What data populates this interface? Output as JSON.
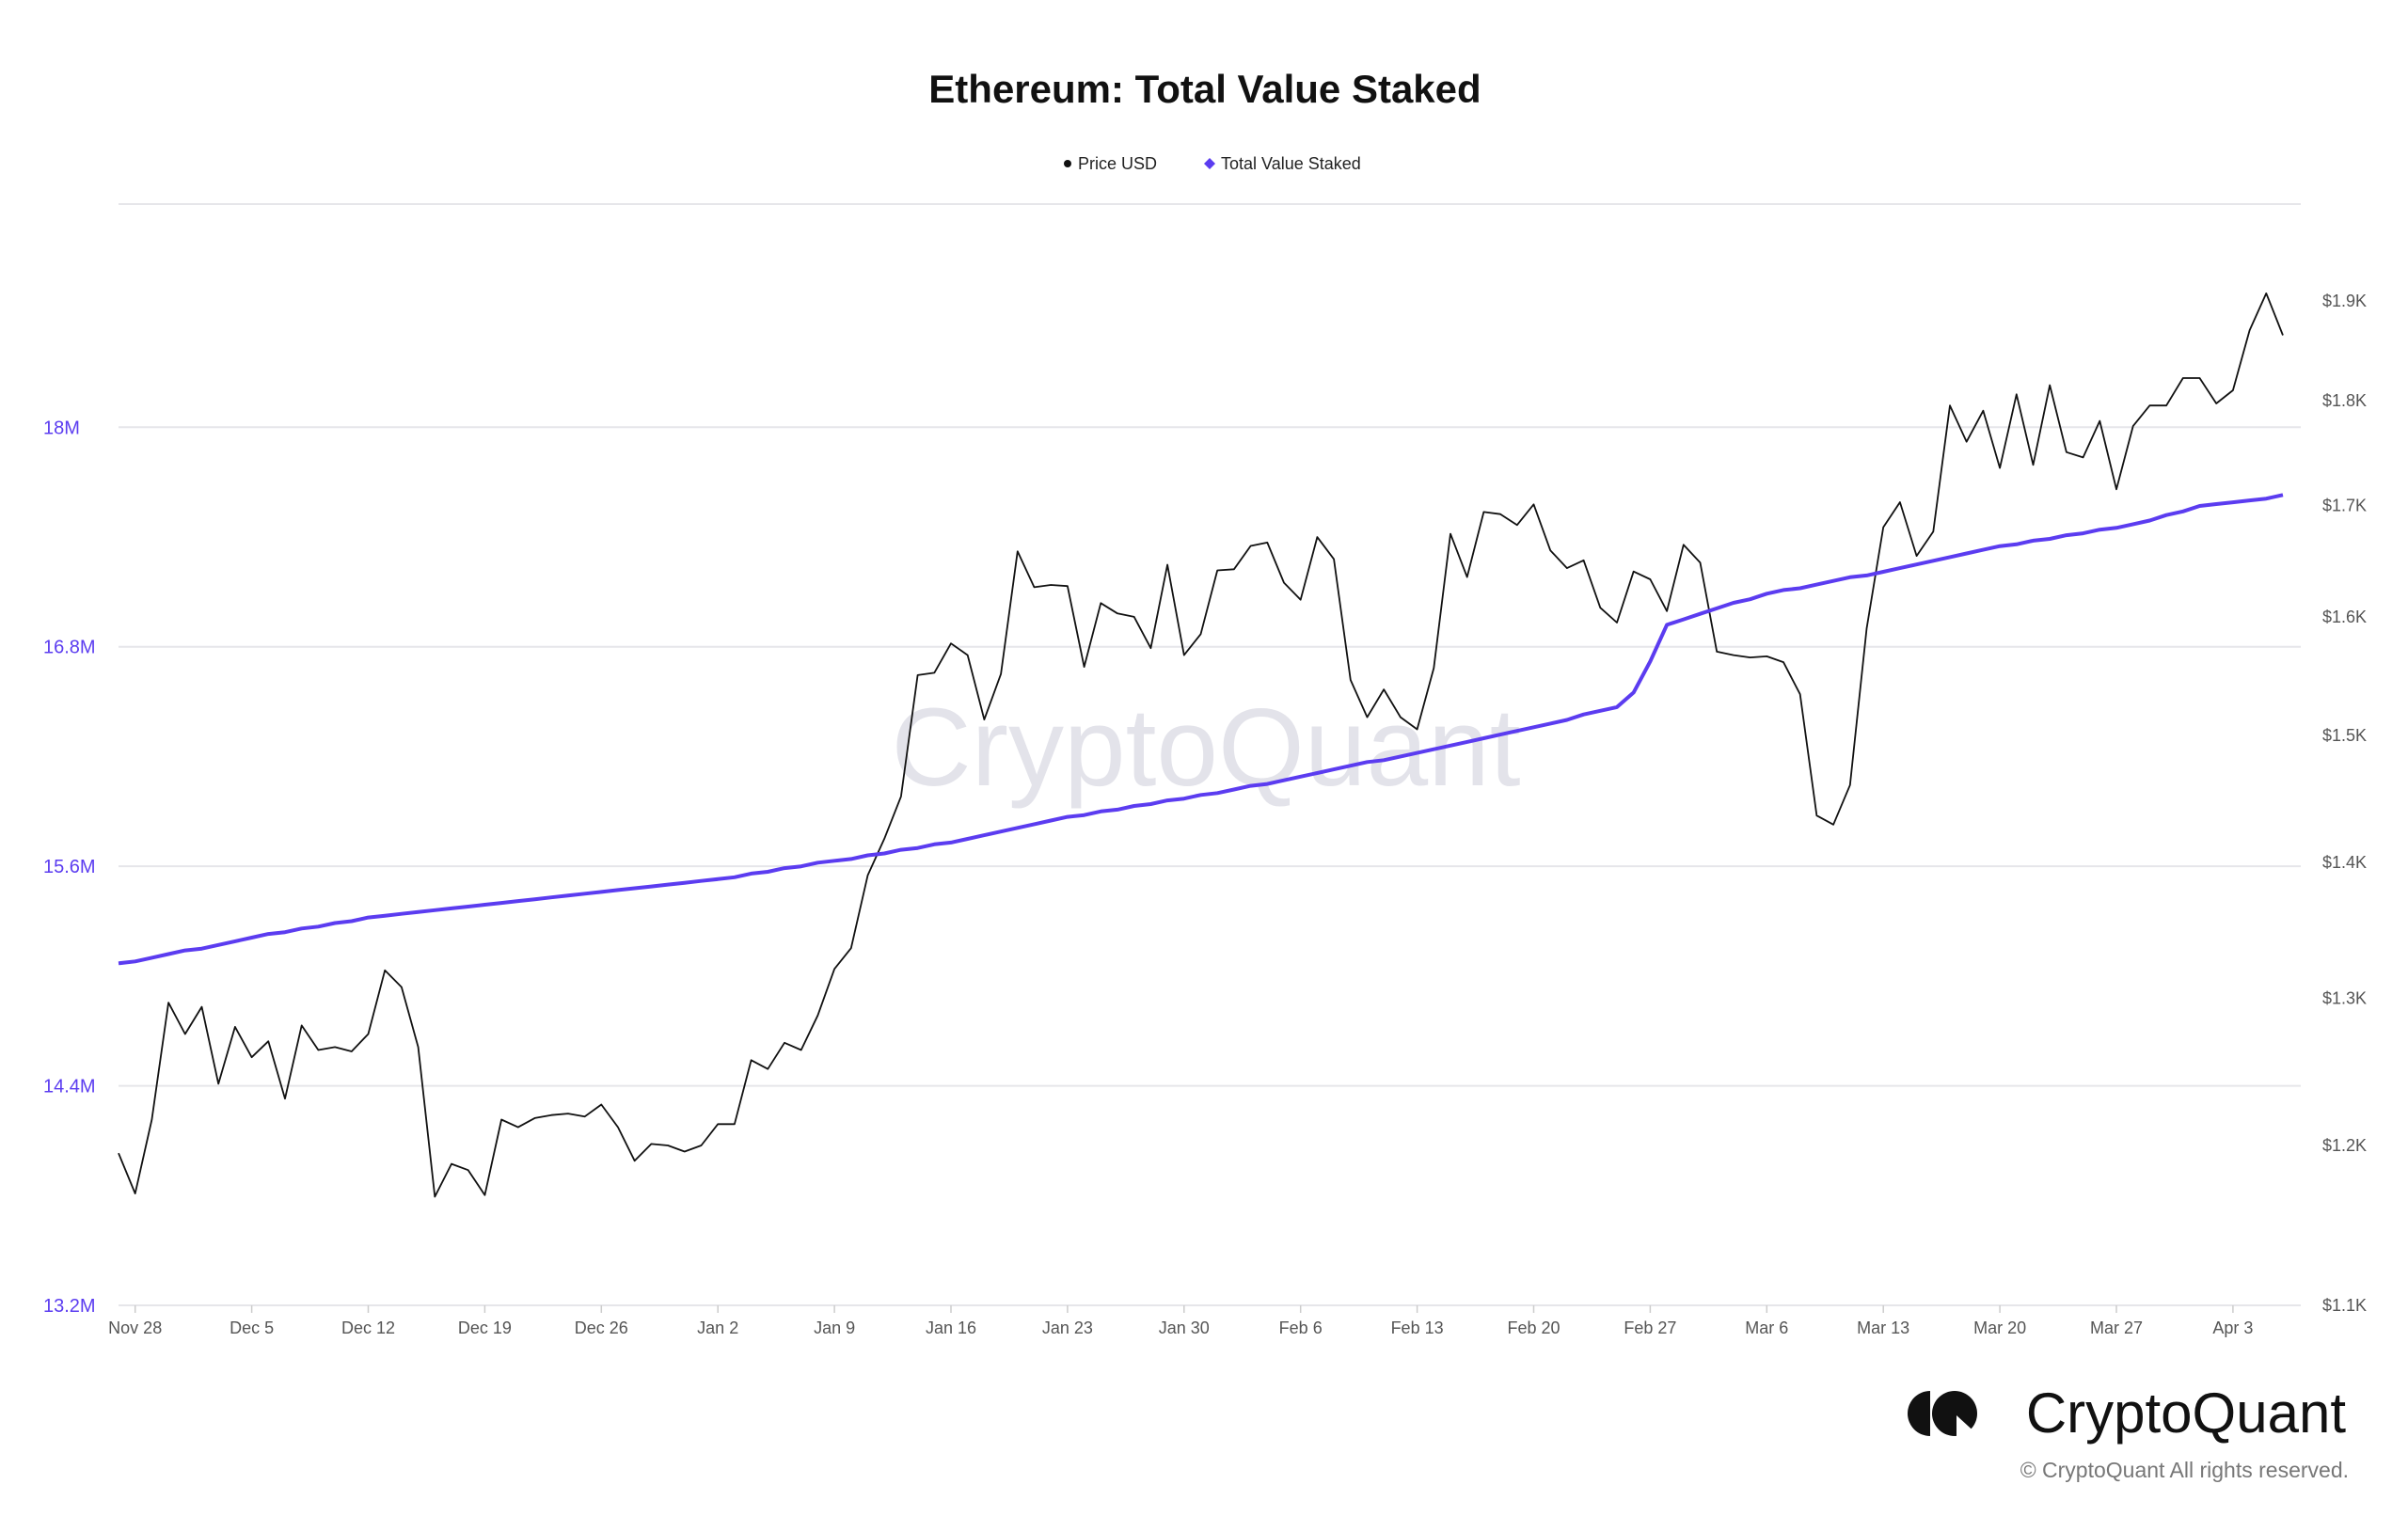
{
  "chart_data": {
    "type": "line",
    "title": "Ethereum: Total Value Staked",
    "legend": {
      "placement": "top-center",
      "items": [
        "Price USD",
        "Total Value Staked"
      ]
    },
    "x_range": [
      "2022-11-27",
      "2023-04-06"
    ],
    "x_frequency": "daily",
    "x_tick_labels": [
      "Nov 28",
      "Dec 5",
      "Dec 12",
      "Dec 19",
      "Dec 26",
      "Jan 2",
      "Jan 9",
      "Jan 16",
      "Jan 23",
      "Jan 30",
      "Feb 6",
      "Feb 13",
      "Feb 20",
      "Feb 27",
      "Mar 6",
      "Mar 13",
      "Mar 20",
      "Mar 27",
      "Apr 3"
    ],
    "left_axis": {
      "ticks": [
        13.2,
        14.4,
        15.6,
        16.8,
        18
      ],
      "tick_labels": [
        "13.2M",
        "14.4M",
        "15.6M",
        "16.8M",
        "18M"
      ],
      "ylim": [
        13.2,
        19.22
      ],
      "unit": "M",
      "color": "#5b3cf0"
    },
    "right_axis": {
      "scale": "log",
      "ticks": [
        1100,
        1200,
        1300,
        1400,
        1500,
        1600,
        1700,
        1800,
        1900
      ],
      "tick_labels": [
        "$1.1K",
        "$1.2K",
        "$1.3K",
        "$1.4K",
        "$1.5K",
        "$1.6K",
        "$1.7K",
        "$1.8K",
        "$1.9K"
      ],
      "ylim": [
        1100,
        2003
      ]
    },
    "grid": true,
    "series": [
      {
        "name": "Price USD",
        "axis": "right",
        "color": "#111111",
        "values": [
          1195,
          1169,
          1217,
          1297,
          1275,
          1294,
          1241,
          1280,
          1259,
          1270,
          1231,
          1281,
          1264,
          1266,
          1263,
          1275,
          1320,
          1308,
          1266,
          1167,
          1188,
          1184,
          1168,
          1217,
          1212,
          1218,
          1220,
          1221,
          1219,
          1227,
          1212,
          1190,
          1201,
          1200,
          1196,
          1200,
          1214,
          1214,
          1257,
          1251,
          1269,
          1264,
          1288,
          1321,
          1336,
          1390,
          1418,
          1451,
          1550,
          1552,
          1577,
          1567,
          1513,
          1551,
          1658,
          1626,
          1628,
          1627,
          1557,
          1612,
          1603,
          1600,
          1573,
          1646,
          1567,
          1585,
          1641,
          1642,
          1663,
          1666,
          1630,
          1615,
          1671,
          1651,
          1546,
          1515,
          1538,
          1515,
          1505,
          1556,
          1674,
          1635,
          1694,
          1692,
          1682,
          1701,
          1659,
          1643,
          1650,
          1608,
          1595,
          1640,
          1633,
          1605,
          1664,
          1648,
          1570,
          1567,
          1565,
          1566,
          1561,
          1534,
          1436,
          1429,
          1460,
          1590,
          1680,
          1703,
          1654,
          1676,
          1795,
          1760,
          1790,
          1735,
          1806,
          1738,
          1815,
          1750,
          1745,
          1780,
          1715,
          1775,
          1795,
          1795,
          1822,
          1822,
          1797,
          1810,
          1870,
          1908,
          1865
        ]
      },
      {
        "name": "Total Value Staked",
        "axis": "left",
        "color": "#5b3cf0",
        "values": [
          15.07,
          15.08,
          15.1,
          15.12,
          15.14,
          15.15,
          15.17,
          15.19,
          15.21,
          15.23,
          15.24,
          15.26,
          15.27,
          15.29,
          15.3,
          15.32,
          15.33,
          15.34,
          15.35,
          15.36,
          15.37,
          15.38,
          15.39,
          15.4,
          15.41,
          15.42,
          15.43,
          15.44,
          15.45,
          15.46,
          15.47,
          15.48,
          15.49,
          15.5,
          15.51,
          15.52,
          15.53,
          15.54,
          15.56,
          15.57,
          15.59,
          15.6,
          15.62,
          15.63,
          15.64,
          15.66,
          15.67,
          15.69,
          15.7,
          15.72,
          15.73,
          15.75,
          15.77,
          15.79,
          15.81,
          15.83,
          15.85,
          15.87,
          15.88,
          15.9,
          15.91,
          15.93,
          15.94,
          15.96,
          15.97,
          15.99,
          16.0,
          16.02,
          16.04,
          16.05,
          16.07,
          16.09,
          16.11,
          16.13,
          16.15,
          16.17,
          16.18,
          16.2,
          16.22,
          16.24,
          16.26,
          16.28,
          16.3,
          16.32,
          16.34,
          16.36,
          16.38,
          16.4,
          16.43,
          16.45,
          16.47,
          16.55,
          16.72,
          16.92,
          16.95,
          16.98,
          17.01,
          17.04,
          17.06,
          17.09,
          17.11,
          17.12,
          17.14,
          17.16,
          17.18,
          17.19,
          17.21,
          17.23,
          17.25,
          17.27,
          17.29,
          17.31,
          17.33,
          17.35,
          17.36,
          17.38,
          17.39,
          17.41,
          17.42,
          17.44,
          17.45,
          17.47,
          17.49,
          17.52,
          17.54,
          17.57,
          17.58,
          17.59,
          17.6,
          17.61,
          17.63
        ]
      }
    ]
  },
  "watermark": "CryptoQuant",
  "footer": {
    "logo_text": "CryptoQuant",
    "copyright": "© CryptoQuant All rights reserved."
  }
}
